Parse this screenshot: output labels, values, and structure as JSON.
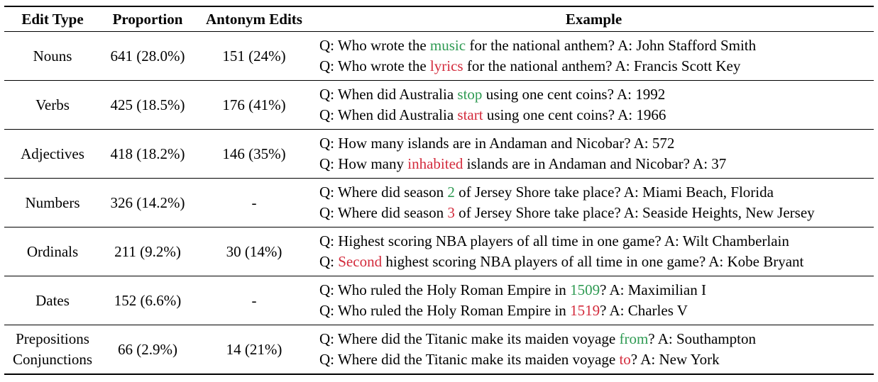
{
  "headers": {
    "edit_type": "Edit Type",
    "proportion": "Proportion",
    "antonym_edits": "Antonym Edits",
    "example": "Example"
  },
  "colors": {
    "original_word": "#2e9a52",
    "edited_word": "#d32b3c"
  },
  "rows": [
    {
      "edit_type_lines": [
        "Nouns"
      ],
      "proportion": "641 (28.0%)",
      "antonym_edits": "151 (24%)",
      "example_q1": {
        "pre": "Q: Who wrote the ",
        "hl": "music",
        "post": " for the national anthem? A: John Stafford Smith"
      },
      "example_q2": {
        "pre": "Q: Who wrote the ",
        "hl": "lyrics",
        "post": " for the national anthem? A: Francis Scott Key"
      }
    },
    {
      "edit_type_lines": [
        "Verbs"
      ],
      "proportion": "425 (18.5%)",
      "antonym_edits": "176 (41%)",
      "example_q1": {
        "pre": "Q: When did Australia ",
        "hl": "stop",
        "post": " using one cent coins? A: 1992"
      },
      "example_q2": {
        "pre": "Q: When did Australia ",
        "hl": "start",
        "post": " using one cent coins? A: 1966"
      }
    },
    {
      "edit_type_lines": [
        "Adjectives"
      ],
      "proportion": "418 (18.2%)",
      "antonym_edits": "146 (35%)",
      "example_q1": {
        "pre": "Q: How many islands are in Andaman and Nicobar? A: 572",
        "hl": "",
        "post": ""
      },
      "example_q2": {
        "pre": "Q: How many ",
        "hl": "inhabited",
        "post": " islands are in Andaman and Nicobar? A: 37"
      }
    },
    {
      "edit_type_lines": [
        "Numbers"
      ],
      "proportion": "326 (14.2%)",
      "antonym_edits": "-",
      "example_q1": {
        "pre": "Q: Where did season ",
        "hl": "2",
        "post": " of Jersey Shore take place? A: Miami Beach, Florida"
      },
      "example_q2": {
        "pre": "Q: Where did season ",
        "hl": "3",
        "post": " of Jersey Shore take place? A: Seaside Heights, New Jersey"
      }
    },
    {
      "edit_type_lines": [
        "Ordinals"
      ],
      "proportion": "211 (9.2%)",
      "antonym_edits": "30 (14%)",
      "example_q1": {
        "pre": "Q: Highest scoring NBA players of all time in one game? A: Wilt Chamberlain",
        "hl": "",
        "post": ""
      },
      "example_q2": {
        "pre": "Q: ",
        "hl": "Second",
        "post": " highest scoring NBA players of all time in one game? A: Kobe Bryant"
      }
    },
    {
      "edit_type_lines": [
        "Dates"
      ],
      "proportion": "152 (6.6%)",
      "antonym_edits": "-",
      "example_q1": {
        "pre": "Q: Who ruled the Holy Roman Empire in ",
        "hl": "1509",
        "post": "? A: Maximilian I"
      },
      "example_q2": {
        "pre": "Q: Who ruled the Holy Roman Empire in ",
        "hl": "1519",
        "post": "? A: Charles V"
      }
    },
    {
      "edit_type_lines": [
        "Prepositions",
        "Conjunctions"
      ],
      "proportion": "66 (2.9%)",
      "antonym_edits": "14 (21%)",
      "example_q1": {
        "pre": "Q: Where did the Titanic make its maiden voyage ",
        "hl": "from",
        "post": "? A: Southampton"
      },
      "example_q2": {
        "pre": "Q: Where did the Titanic make its maiden voyage ",
        "hl": "to",
        "post": "? A: New York"
      }
    }
  ]
}
